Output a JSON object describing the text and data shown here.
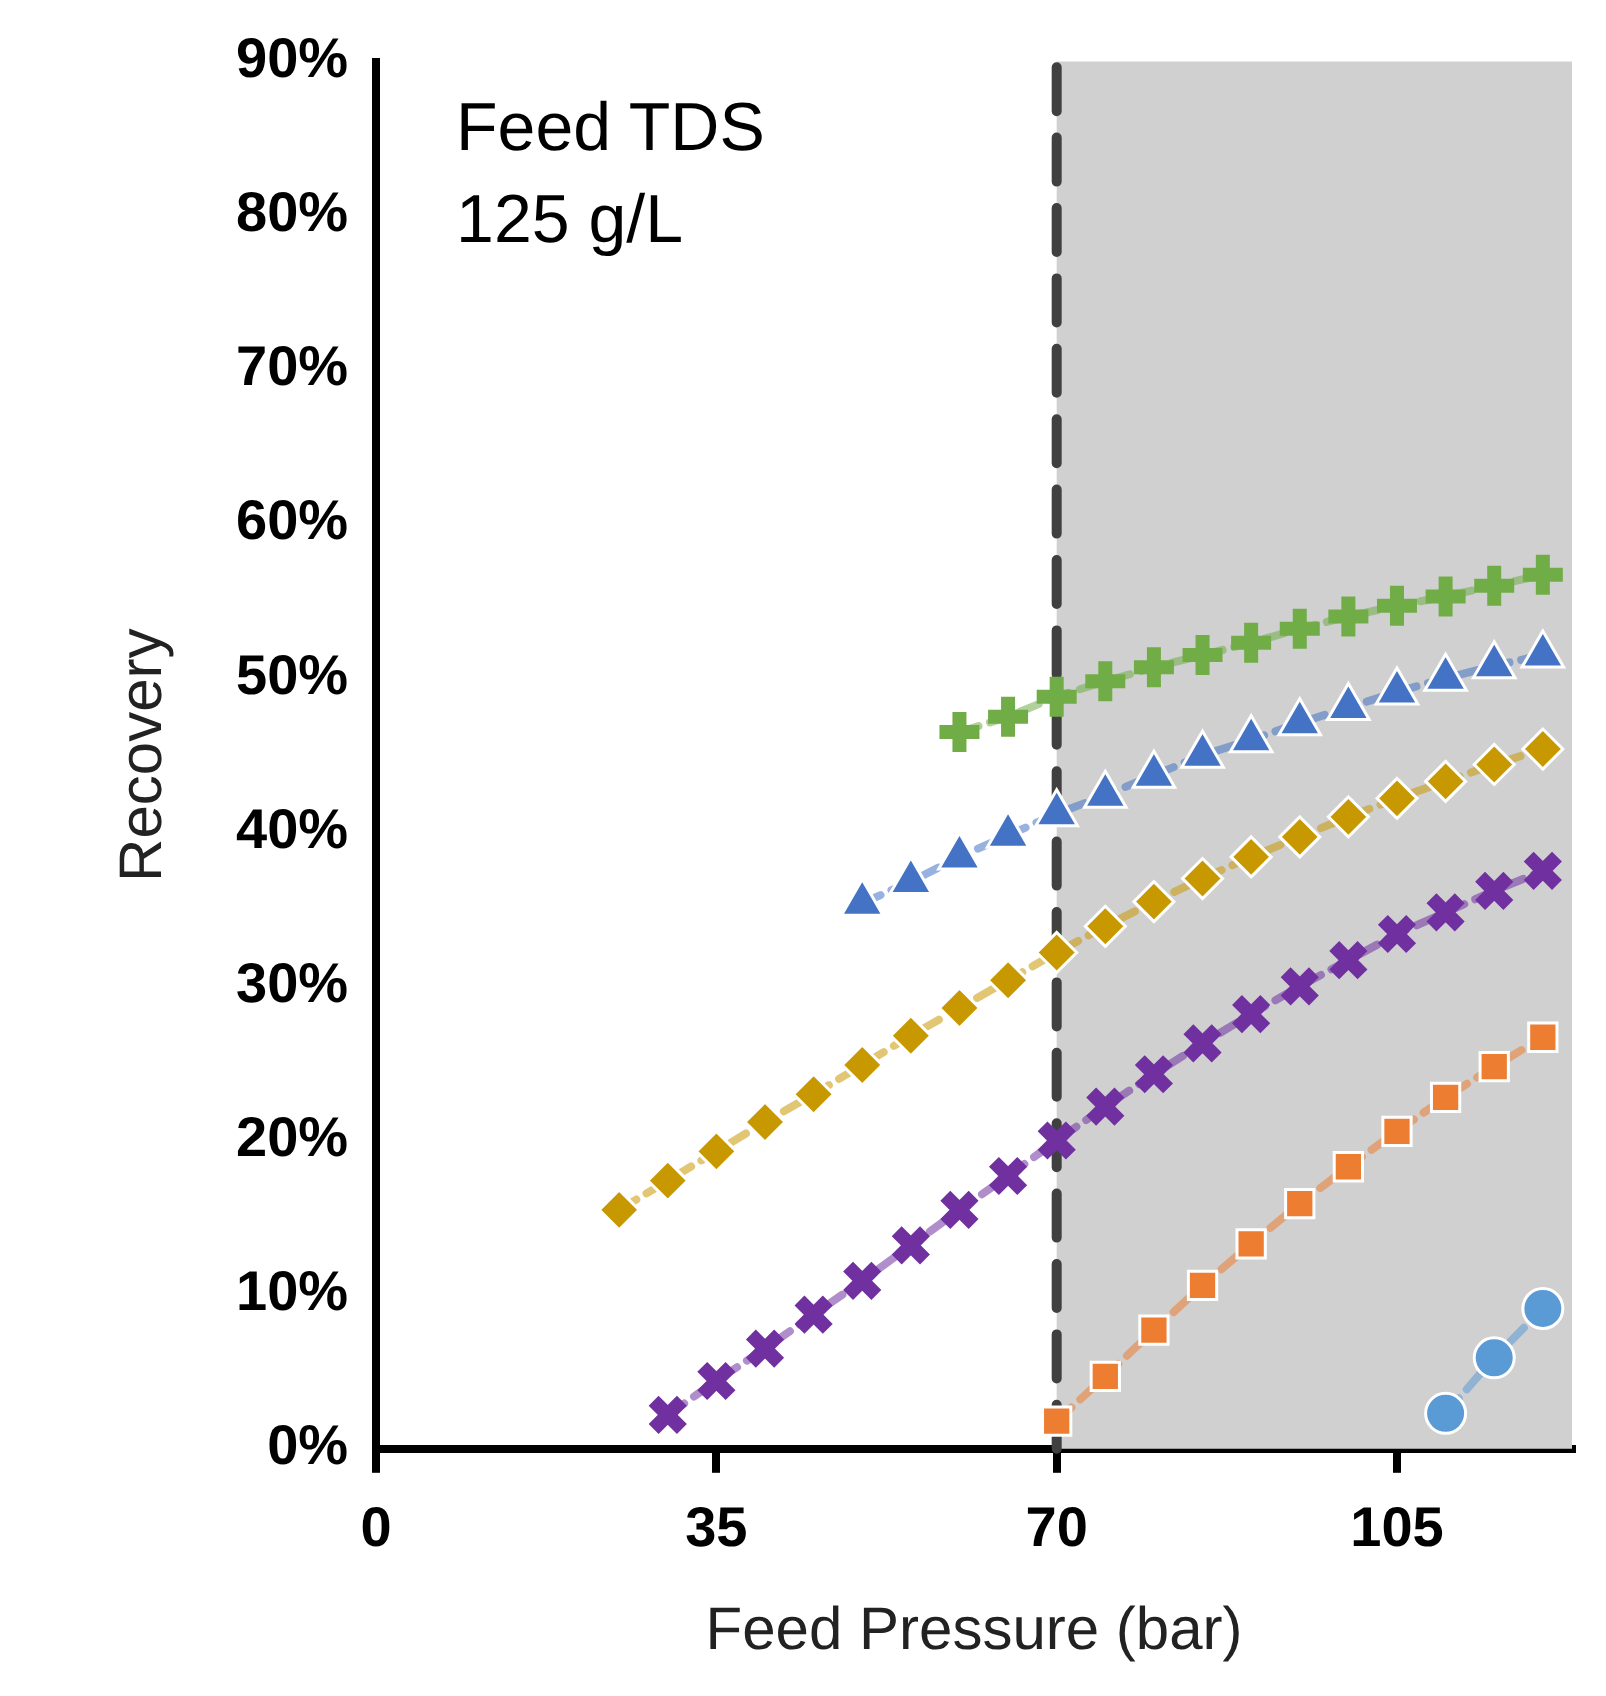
{
  "chart_data": {
    "type": "line",
    "xlabel": "Feed Pressure (bar)",
    "ylabel": "Recovery",
    "annotations": [
      "Feed TDS\n125 g/L"
    ],
    "xlim": [
      0,
      123
    ],
    "xticks": [
      0,
      35,
      70,
      105
    ],
    "ylim": [
      0,
      90
    ],
    "yticks": [
      {
        "value": 0,
        "label": "0%"
      },
      {
        "value": 10,
        "label": "10%"
      },
      {
        "value": 20,
        "label": "20%"
      },
      {
        "value": 30,
        "label": "30%"
      },
      {
        "value": 40,
        "label": "40%"
      },
      {
        "value": 50,
        "label": "50%"
      },
      {
        "value": 60,
        "label": "60%"
      },
      {
        "value": 70,
        "label": "70%"
      },
      {
        "value": 80,
        "label": "80%"
      },
      {
        "value": 90,
        "label": "90%"
      }
    ],
    "grid": false,
    "legend": false,
    "line_style": "dashed",
    "bands": [
      {
        "axis": "x",
        "from": 70,
        "to": 123,
        "color": "#d0d0d0"
      }
    ],
    "ref_lines": [
      {
        "axis": "x",
        "value": 70,
        "color": "#404040",
        "line_style": "dashed"
      }
    ],
    "series": [
      {
        "color": "#70ad47",
        "marker": "cross",
        "x": [
          60,
          65,
          70,
          75,
          80,
          85,
          90,
          95,
          100,
          105,
          110,
          115,
          120
        ],
        "values": [
          46.5,
          47.5,
          48.8,
          49.8,
          50.7,
          51.5,
          52.3,
          53.2,
          54,
          54.7,
          55.3,
          56,
          56.7
        ]
      },
      {
        "color": "#4472c4",
        "marker": "triangle",
        "x": [
          50,
          55,
          60,
          65,
          70,
          75,
          80,
          85,
          90,
          95,
          100,
          105,
          110,
          115,
          120
        ],
        "values": [
          35.4,
          36.8,
          38.4,
          39.8,
          41.2,
          42.4,
          43.7,
          45,
          46,
          47.1,
          48.1,
          49.1,
          50,
          50.8,
          51.5
        ]
      },
      {
        "color": "#c89800",
        "marker": "diamond",
        "x": [
          25,
          30,
          35,
          40,
          45,
          50,
          55,
          60,
          65,
          70,
          75,
          80,
          85,
          90,
          95,
          100,
          105,
          110,
          115,
          120
        ],
        "values": [
          15.5,
          17.4,
          19.3,
          21.2,
          23,
          24.9,
          26.8,
          28.6,
          30.4,
          32.2,
          33.9,
          35.5,
          37,
          38.4,
          39.7,
          41,
          42.2,
          43.3,
          44.4,
          45.4
        ]
      },
      {
        "color": "#7030a0",
        "marker": "x",
        "x": [
          30,
          35,
          40,
          45,
          50,
          55,
          60,
          65,
          70,
          75,
          80,
          85,
          90,
          95,
          100,
          105,
          110,
          115,
          120
        ],
        "values": [
          2.2,
          4.4,
          6.5,
          8.7,
          10.9,
          13.2,
          15.5,
          17.7,
          20,
          22.2,
          24.3,
          26.3,
          28.2,
          30,
          31.7,
          33.4,
          34.8,
          36.2,
          37.5
        ]
      },
      {
        "color": "#ed7d31",
        "marker": "square",
        "x": [
          70,
          75,
          80,
          85,
          90,
          95,
          100,
          105,
          110,
          115,
          120
        ],
        "values": [
          1.8,
          4.7,
          7.7,
          10.6,
          13.3,
          15.9,
          18.3,
          20.6,
          22.8,
          24.8,
          26.7
        ]
      },
      {
        "color": "#5b9bd5",
        "marker": "circle",
        "x": [
          110,
          115,
          120
        ],
        "values": [
          2.3,
          5.9,
          9.1
        ]
      }
    ]
  }
}
